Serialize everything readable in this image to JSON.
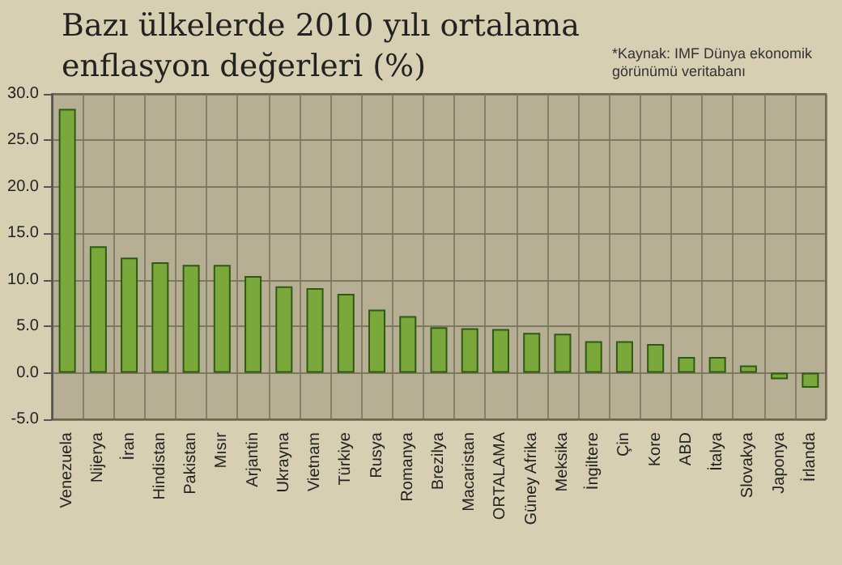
{
  "chart_data": {
    "type": "bar",
    "title": "Bazı ülkelerde 2010 yılı ortalama enflasyon değerleri (%)",
    "annotations": [
      "*Kaynak: IMF Dünya ekonomik görünümü veritabanı"
    ],
    "categories": [
      "Venezuela",
      "Nijerya",
      "İran",
      "Hindistan",
      "Pakistan",
      "Mısır",
      "Arjantin",
      "Ukrayna",
      "Vietnam",
      "Türkiye",
      "Rusya",
      "Romanya",
      "Brezilya",
      "Macaristan",
      "ORTALAMA",
      "Güney Afrika",
      "Meksika",
      "İngiltere",
      "Çin",
      "Kore",
      "ABD",
      "İtalya",
      "Slovakya",
      "Japonya",
      "İrlanda"
    ],
    "values": [
      28.4,
      13.6,
      12.4,
      11.9,
      11.6,
      11.6,
      10.4,
      9.3,
      9.1,
      8.5,
      6.8,
      6.1,
      4.9,
      4.8,
      4.7,
      4.3,
      4.2,
      3.4,
      3.4,
      3.1,
      1.7,
      1.7,
      0.8,
      -0.7,
      -1.6
    ],
    "color": "#7aa83a",
    "ylim": [
      -5,
      30
    ],
    "yticks": [
      {
        "value": -5,
        "label": "-5.0"
      },
      {
        "value": 0,
        "label": "0.0"
      },
      {
        "value": 5,
        "label": "5.0"
      },
      {
        "value": 10,
        "label": "10.0"
      },
      {
        "value": 15,
        "label": "15.0"
      },
      {
        "value": 20,
        "label": "20.0"
      },
      {
        "value": 25,
        "label": "25.0"
      },
      {
        "value": 30,
        "label": "30.0"
      }
    ],
    "grid": true
  }
}
